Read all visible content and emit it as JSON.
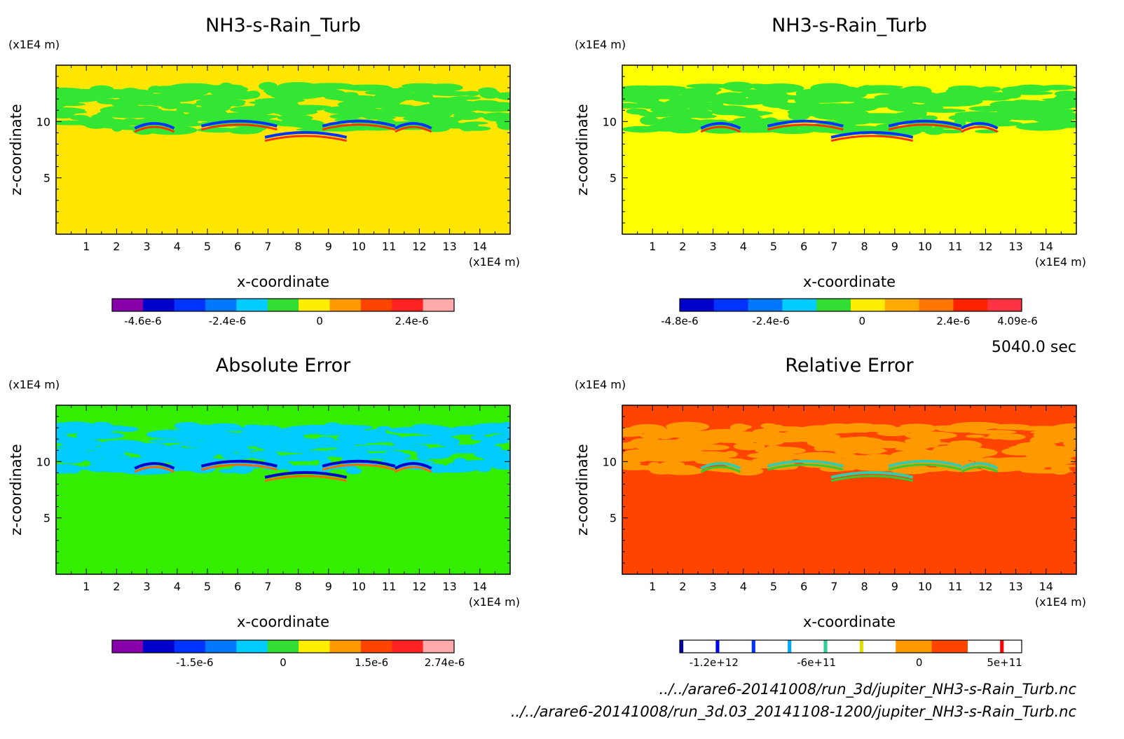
{
  "time_label": "5040.0 sec",
  "files": [
    "../../arare6-20141008/run_3d/jupiter_NH3-s-Rain_Turb.nc",
    "../../arare6-20141008/run_3d.03_20141108-1200/jupiter_NH3-s-Rain_Turb.nc"
  ],
  "chart_data": [
    {
      "type": "heatmap",
      "title": "NH3-s-Rain_Turb",
      "xlabel": "x-coordinate",
      "ylabel": "z-coordinate",
      "x_unit": "(x1E4 m)",
      "y_unit": "(x1E4 m)",
      "xlim": [
        0,
        15
      ],
      "ylim": [
        0,
        15
      ],
      "xticks": [
        "1",
        "2",
        "3",
        "4",
        "5",
        "6",
        "7",
        "8",
        "9",
        "10",
        "11",
        "12",
        "13",
        "14"
      ],
      "yticks": [
        "5",
        "10"
      ],
      "background_color": "#ffe600",
      "band_color": "#33e633",
      "wave_colors": [
        "#0033ff",
        "#ff3300"
      ],
      "colorbar": {
        "colors": [
          "#8800aa",
          "#0000cc",
          "#0033ff",
          "#0077ff",
          "#00ccff",
          "#33dd33",
          "#ffee00",
          "#ff9900",
          "#ff4400",
          "#ff2222",
          "#ffaaaa"
        ],
        "labels": [
          "-4.6e-6",
          "-2.4e-6",
          "0",
          "2.4e-6"
        ],
        "label_values": [
          -4.6e-06,
          -2.4e-06,
          0,
          2.4e-06
        ],
        "range": [
          -5.4e-06,
          3.5e-06
        ]
      }
    },
    {
      "type": "heatmap",
      "title": "NH3-s-Rain_Turb",
      "xlabel": "x-coordinate",
      "ylabel": "z-coordinate",
      "x_unit": "(x1E4 m)",
      "y_unit": "(x1E4 m)",
      "xlim": [
        0,
        15
      ],
      "ylim": [
        0,
        15
      ],
      "xticks": [
        "1",
        "2",
        "3",
        "4",
        "5",
        "6",
        "7",
        "8",
        "9",
        "10",
        "11",
        "12",
        "13",
        "14"
      ],
      "yticks": [
        "5",
        "10"
      ],
      "background_color": "#ffff00",
      "band_color": "#33e633",
      "wave_colors": [
        "#0033ff",
        "#ff3300"
      ],
      "colorbar": {
        "colors": [
          "#0000cc",
          "#0033ff",
          "#0077ff",
          "#00ccff",
          "#33dd33",
          "#ffee00",
          "#ffaa00",
          "#ff7700",
          "#ff2200",
          "#ff3344"
        ],
        "labels": [
          "-4.8e-6",
          "-2.4e-6",
          "0",
          "2.4e-6",
          "4.09e-6"
        ],
        "label_values": [
          -4.8e-06,
          -2.4e-06,
          0,
          2.4e-06,
          4.09e-06
        ],
        "range": [
          -4.8e-06,
          4.2e-06
        ]
      }
    },
    {
      "type": "heatmap",
      "title": "Absolute Error",
      "xlabel": "x-coordinate",
      "ylabel": "z-coordinate",
      "x_unit": "(x1E4 m)",
      "y_unit": "(x1E4 m)",
      "xlim": [
        0,
        15
      ],
      "ylim": [
        0,
        15
      ],
      "xticks": [
        "1",
        "2",
        "3",
        "4",
        "5",
        "6",
        "7",
        "8",
        "9",
        "10",
        "11",
        "12",
        "13",
        "14"
      ],
      "yticks": [
        "5",
        "10"
      ],
      "background_color": "#33ee00",
      "band_color": "#00ccff",
      "wave_colors": [
        "#0000cc",
        "#ff6600"
      ],
      "colorbar": {
        "colors": [
          "#8800aa",
          "#0000cc",
          "#0033ff",
          "#0077ff",
          "#00ccff",
          "#33dd33",
          "#ffee00",
          "#ff9900",
          "#ff4400",
          "#ff2222",
          "#ffaaaa"
        ],
        "labels": [
          "-1.5e-6",
          "0",
          "1.5e-6",
          "2.74e-6"
        ],
        "label_values": [
          -1.5e-06,
          0,
          1.5e-06,
          2.74e-06
        ],
        "range": [
          -2.9e-06,
          2.9e-06
        ]
      }
    },
    {
      "type": "heatmap",
      "title": "Relative Error",
      "xlabel": "x-coordinate",
      "ylabel": "z-coordinate",
      "x_unit": "(x1E4 m)",
      "y_unit": "(x1E4 m)",
      "xlim": [
        0,
        15
      ],
      "ylim": [
        0,
        15
      ],
      "xticks": [
        "1",
        "2",
        "3",
        "4",
        "5",
        "6",
        "7",
        "8",
        "9",
        "10",
        "11",
        "12",
        "13",
        "14"
      ],
      "yticks": [
        "5",
        "10"
      ],
      "background_color": "#ff4400",
      "band_color": "#ff9900",
      "wave_colors": [
        "#33ccaa",
        "#33cc33"
      ],
      "colorbar": {
        "colors": [
          "#0000aa",
          "#ffffff",
          "#0000ff",
          "#ffffff",
          "#0033ff",
          "#ffffff",
          "#00aaff",
          "#ffffff",
          "#33cc99",
          "#ffffff",
          "#dddd00",
          "#ffffff",
          "#ff9900",
          "#ff4400",
          "#ffffff",
          "#ff0000",
          "#ffffff"
        ],
        "widths": [
          1,
          9,
          1,
          9,
          1,
          9,
          1,
          9,
          1,
          9,
          1,
          9,
          10,
          10,
          9,
          1,
          5
        ],
        "labels": [
          "-1.2e+12",
          "-6e+11",
          "0",
          "5e+11"
        ],
        "label_values": [
          -1200000000000.0,
          -600000000000.0,
          0,
          500000000000.0
        ],
        "range": [
          -1400000000000.0,
          600000000000.0
        ]
      }
    }
  ]
}
